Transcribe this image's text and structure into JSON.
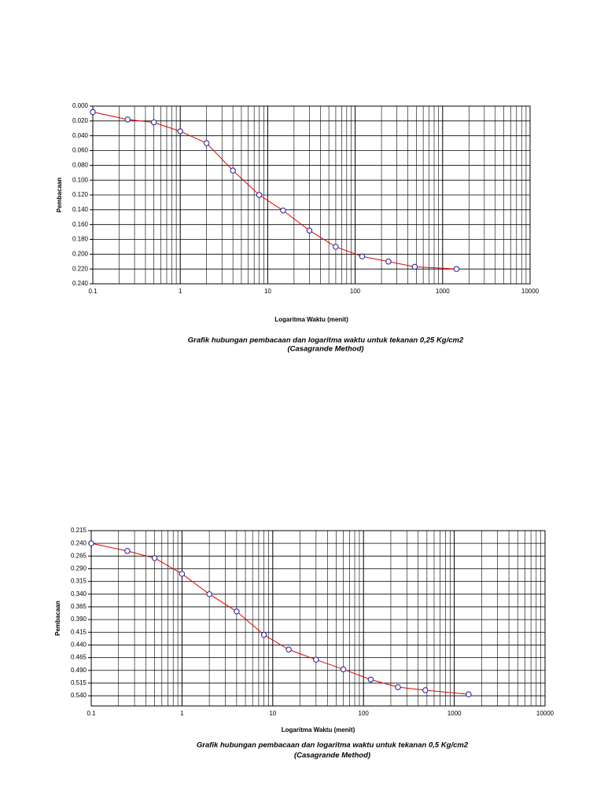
{
  "chart_data": [
    {
      "type": "line",
      "title": "Grafik hubungan pembacaan dan logaritma waktu untuk tekanan 0,25 Kg/cm2",
      "subtitle": "(Casagrande Method)",
      "x_label": "Logaritma Waktu (menit)",
      "y_label": "Pembacaan",
      "x": [
        0.1,
        0.25,
        0.5,
        1,
        2,
        4,
        8,
        15,
        30,
        60,
        120,
        240,
        480,
        1440
      ],
      "series": [
        {
          "name": "Pembacaan",
          "color": "#e00000",
          "marker_color": "#1a1aa0",
          "values": [
            0.008,
            0.018,
            0.022,
            0.034,
            0.05,
            0.087,
            0.12,
            0.141,
            0.168,
            0.19,
            0.203,
            0.21,
            0.217,
            0.22
          ]
        }
      ],
      "x_log": true,
      "y_inverted": true,
      "grid": true,
      "xlim": [
        0.1,
        10000
      ],
      "xticks": [
        0.1,
        1,
        10,
        100,
        1000,
        10000
      ],
      "ylim": [
        0,
        0.24
      ],
      "yticks": [
        {
          "value": 0,
          "label": "0.000"
        },
        {
          "value": 0.02,
          "label": "0.020"
        },
        {
          "value": 0.04,
          "label": "0.040"
        },
        {
          "value": 0.06,
          "label": "0.060"
        },
        {
          "value": 0.08,
          "label": "0.080"
        },
        {
          "value": 0.1,
          "label": "0.100"
        },
        {
          "value": 0.12,
          "label": "0.120"
        },
        {
          "value": 0.14,
          "label": "0.140"
        },
        {
          "value": 0.16,
          "label": "0.160"
        },
        {
          "value": 0.18,
          "label": "0.180"
        },
        {
          "value": 0.2,
          "label": "0.200"
        },
        {
          "value": 0.22,
          "label": "0.220"
        },
        {
          "value": 0.24,
          "label": "0.240"
        }
      ]
    },
    {
      "type": "line",
      "title": "Grafik hubungan pembacaan dan logaritma waktu untuk tekanan 0,5 Kg/cm2",
      "subtitle": "(Casagrande Method)",
      "x_label": "Logaritma Waktu (menit)",
      "y_label": "Pembacaan",
      "x": [
        0.1,
        0.25,
        0.5,
        1,
        2,
        4,
        8,
        15,
        30,
        60,
        120,
        240,
        480,
        1440
      ],
      "series": [
        {
          "name": "Pembacaan",
          "color": "#e00000",
          "marker_color": "#1a1aa0",
          "values": [
            0.24,
            0.255,
            0.269,
            0.3,
            0.34,
            0.374,
            0.42,
            0.449,
            0.469,
            0.488,
            0.508,
            0.523,
            0.529,
            0.537
          ]
        }
      ],
      "x_log": true,
      "y_inverted": true,
      "grid": true,
      "xlim": [
        0.1,
        10000
      ],
      "xticks": [
        0.1,
        1,
        10,
        100,
        1000,
        10000
      ],
      "ylim": [
        0.215,
        0.56
      ],
      "yticks": [
        0.215,
        {
          "value": 0.24,
          "label": "0.240"
        },
        0.265,
        {
          "value": 0.29,
          "label": "0.290"
        },
        0.315,
        {
          "value": 0.34,
          "label": "0.340"
        },
        0.365,
        {
          "value": 0.39,
          "label": "0.390"
        },
        0.415,
        {
          "value": 0.44,
          "label": "0.440"
        },
        0.465,
        {
          "value": 0.49,
          "label": "0.490"
        },
        0.515,
        {
          "value": 0.54,
          "label": "0.540"
        }
      ]
    }
  ]
}
